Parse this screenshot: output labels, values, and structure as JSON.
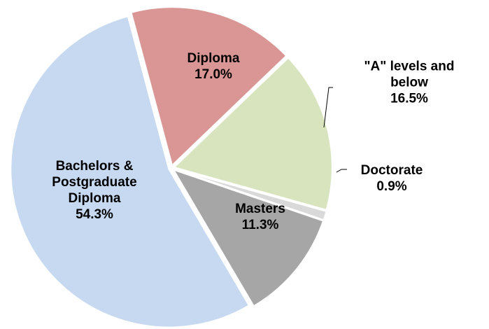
{
  "chart_data": {
    "type": "pie",
    "categories": [
      "Diploma",
      "\"A\" levels and below",
      "Doctorate",
      "Masters",
      "Bachelors & Postgraduate Diploma"
    ],
    "values": [
      17.0,
      16.5,
      0.9,
      11.3,
      54.3
    ],
    "value_labels": [
      "17.0%",
      "16.5%",
      "0.9%",
      "11.3%",
      "54.3%"
    ],
    "colors": [
      "#d99694",
      "#d7e4bd",
      "#d9d9d9",
      "#a6a6a6",
      "#c6d9f1"
    ]
  }
}
